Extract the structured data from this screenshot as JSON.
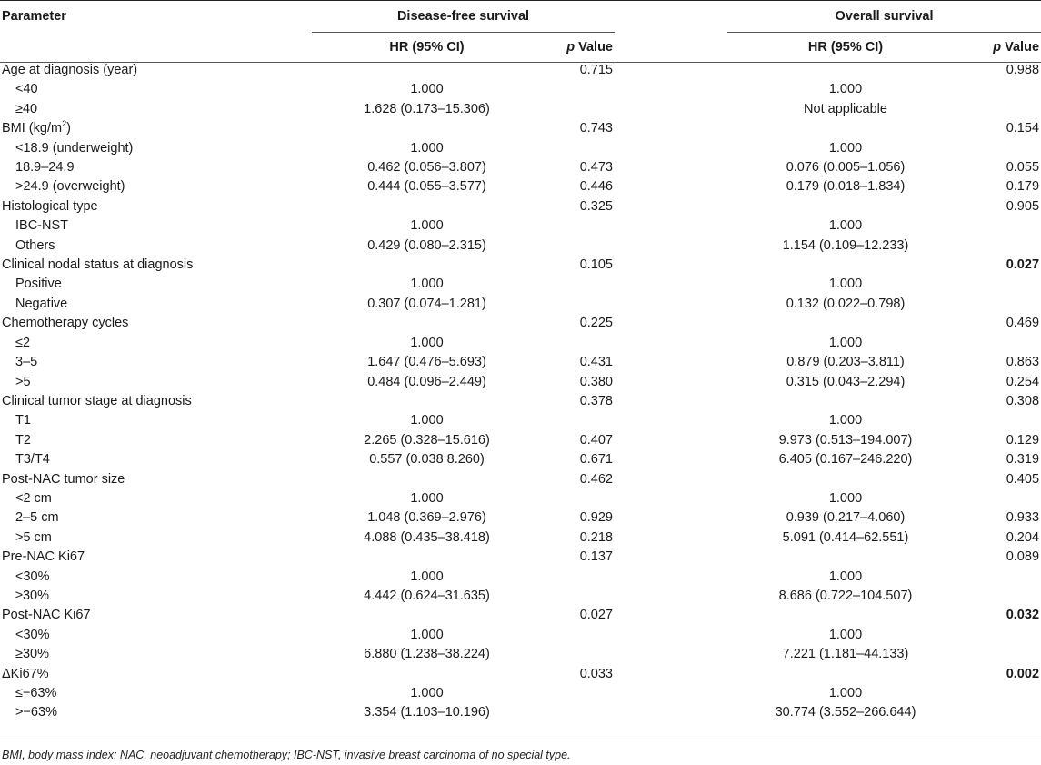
{
  "header": {
    "parameter": "Parameter",
    "dfs": "Disease-free survival",
    "os": "Overall survival",
    "hr_label": "HR (95% CI)",
    "p_italic": "p",
    "p_rest": " Value"
  },
  "rows": [
    {
      "label": "Age at diagnosis (year)",
      "sub": false,
      "dfs_hr": "",
      "dfs_p": "0.715",
      "os_hr": "",
      "os_p": "0.988",
      "os_bold": false
    },
    {
      "label": "<40",
      "sub": true,
      "dfs_hr": "1.000",
      "dfs_p": "",
      "os_hr": "1.000",
      "os_p": "",
      "os_bold": false
    },
    {
      "label": "≥40",
      "sub": true,
      "dfs_hr": "1.628 (0.173–15.306)",
      "dfs_p": "",
      "os_hr": "Not applicable",
      "os_p": "",
      "os_bold": false
    },
    {
      "label": "BMI (kg/m",
      "sup": "2",
      "label_tail": ")",
      "sub": false,
      "dfs_hr": "",
      "dfs_p": "0.743",
      "os_hr": "",
      "os_p": "0.154",
      "os_bold": false
    },
    {
      "label": "<18.9 (underweight)",
      "sub": true,
      "dfs_hr": "1.000",
      "dfs_p": "",
      "os_hr": "1.000",
      "os_p": "",
      "os_bold": false
    },
    {
      "label": "18.9–24.9",
      "sub": true,
      "dfs_hr": "0.462 (0.056–3.807)",
      "dfs_p": "0.473",
      "os_hr": "0.076 (0.005–1.056)",
      "os_p": "0.055",
      "os_bold": false
    },
    {
      "label": ">24.9 (overweight)",
      "sub": true,
      "dfs_hr": "0.444 (0.055–3.577)",
      "dfs_p": "0.446",
      "os_hr": "0.179 (0.018–1.834)",
      "os_p": "0.179",
      "os_bold": false
    },
    {
      "label": "Histological type",
      "sub": false,
      "dfs_hr": "",
      "dfs_p": "0.325",
      "os_hr": "",
      "os_p": "0.905",
      "os_bold": false
    },
    {
      "label": "IBC-NST",
      "sub": true,
      "dfs_hr": "1.000",
      "dfs_p": "",
      "os_hr": "1.000",
      "os_p": "",
      "os_bold": false
    },
    {
      "label": "Others",
      "sub": true,
      "dfs_hr": "0.429 (0.080–2.315)",
      "dfs_p": "",
      "os_hr": "1.154 (0.109–12.233)",
      "os_p": "",
      "os_bold": false
    },
    {
      "label": "Clinical nodal status at diagnosis",
      "sub": false,
      "dfs_hr": "",
      "dfs_p": "0.105",
      "os_hr": "",
      "os_p": "0.027",
      "os_bold": true
    },
    {
      "label": "Positive",
      "sub": true,
      "dfs_hr": "1.000",
      "dfs_p": "",
      "os_hr": "1.000",
      "os_p": "",
      "os_bold": false
    },
    {
      "label": "Negative",
      "sub": true,
      "dfs_hr": "0.307 (0.074–1.281)",
      "dfs_p": "",
      "os_hr": "0.132 (0.022–0.798)",
      "os_p": "",
      "os_bold": false
    },
    {
      "label": "Chemotherapy cycles",
      "sub": false,
      "dfs_hr": "",
      "dfs_p": "0.225",
      "os_hr": "",
      "os_p": "0.469",
      "os_bold": false
    },
    {
      "label": "≤2",
      "sub": true,
      "dfs_hr": "1.000",
      "dfs_p": "",
      "os_hr": "1.000",
      "os_p": "",
      "os_bold": false
    },
    {
      "label": "3–5",
      "sub": true,
      "dfs_hr": "1.647 (0.476–5.693)",
      "dfs_p": "0.431",
      "os_hr": "0.879 (0.203–3.811)",
      "os_p": "0.863",
      "os_bold": false
    },
    {
      "label": ">5",
      "sub": true,
      "dfs_hr": "0.484 (0.096–2.449)",
      "dfs_p": "0.380",
      "os_hr": "0.315 (0.043–2.294)",
      "os_p": "0.254",
      "os_bold": false
    },
    {
      "label": "Clinical tumor stage at diagnosis",
      "sub": false,
      "dfs_hr": "",
      "dfs_p": "0.378",
      "os_hr": "",
      "os_p": "0.308",
      "os_bold": false
    },
    {
      "label": "T1",
      "sub": true,
      "dfs_hr": "1.000",
      "dfs_p": "",
      "os_hr": "1.000",
      "os_p": "",
      "os_bold": false
    },
    {
      "label": "T2",
      "sub": true,
      "dfs_hr": "2.265 (0.328–15.616)",
      "dfs_p": "0.407",
      "os_hr": "9.973 (0.513–194.007)",
      "os_p": "0.129",
      "os_bold": false
    },
    {
      "label": "T3/T4",
      "sub": true,
      "dfs_hr": "0.557 (0.038 8.260)",
      "dfs_p": "0.671",
      "os_hr": "6.405 (0.167–246.220)",
      "os_p": "0.319",
      "os_bold": false
    },
    {
      "label": "Post-NAC tumor size",
      "sub": false,
      "dfs_hr": "",
      "dfs_p": "0.462",
      "os_hr": "",
      "os_p": "0.405",
      "os_bold": false
    },
    {
      "label": "<2 cm",
      "sub": true,
      "dfs_hr": "1.000",
      "dfs_p": "",
      "os_hr": "1.000",
      "os_p": "",
      "os_bold": false
    },
    {
      "label": "2–5 cm",
      "sub": true,
      "dfs_hr": "1.048 (0.369–2.976)",
      "dfs_p": "0.929",
      "os_hr": "0.939 (0.217–4.060)",
      "os_p": "0.933",
      "os_bold": false
    },
    {
      "label": ">5 cm",
      "sub": true,
      "dfs_hr": "4.088 (0.435–38.418)",
      "dfs_p": "0.218",
      "os_hr": "5.091 (0.414–62.551)",
      "os_p": "0.204",
      "os_bold": false
    },
    {
      "label": "Pre-NAC Ki67",
      "sub": false,
      "dfs_hr": "",
      "dfs_p": "0.137",
      "os_hr": "",
      "os_p": "0.089",
      "os_bold": false
    },
    {
      "label": "<30%",
      "sub": true,
      "dfs_hr": "1.000",
      "dfs_p": "",
      "os_hr": "1.000",
      "os_p": "",
      "os_bold": false
    },
    {
      "label": "≥30%",
      "sub": true,
      "dfs_hr": "4.442 (0.624–31.635)",
      "dfs_p": "",
      "os_hr": "8.686 (0.722–104.507)",
      "os_p": "",
      "os_bold": false
    },
    {
      "label": "Post-NAC Ki67",
      "sub": false,
      "dfs_hr": "",
      "dfs_p": "0.027",
      "os_hr": "",
      "os_p": "0.032",
      "os_bold": true
    },
    {
      "label": "<30%",
      "sub": true,
      "dfs_hr": "1.000",
      "dfs_p": "",
      "os_hr": "1.000",
      "os_p": "",
      "os_bold": false
    },
    {
      "label": "≥30%",
      "sub": true,
      "dfs_hr": "6.880 (1.238–38.224)",
      "dfs_p": "",
      "os_hr": "7.221 (1.181–44.133)",
      "os_p": "",
      "os_bold": false
    },
    {
      "label": "ΔKi67%",
      "sub": false,
      "dfs_hr": "",
      "dfs_p": "0.033",
      "os_hr": "",
      "os_p": "0.002",
      "os_bold": true
    },
    {
      "label": "≤−63%",
      "sub": true,
      "dfs_hr": "1.000",
      "dfs_p": "",
      "os_hr": "1.000",
      "os_p": "",
      "os_bold": false
    },
    {
      "label": ">−63%",
      "sub": true,
      "dfs_hr": "3.354 (1.103–10.196)",
      "dfs_p": "",
      "os_hr": "30.774 (3.552–266.644)",
      "os_p": "",
      "os_bold": false
    }
  ],
  "footnote": "BMI, body mass index; NAC, neoadjuvant chemotherapy; IBC-NST, invasive breast carcinoma of no special type."
}
